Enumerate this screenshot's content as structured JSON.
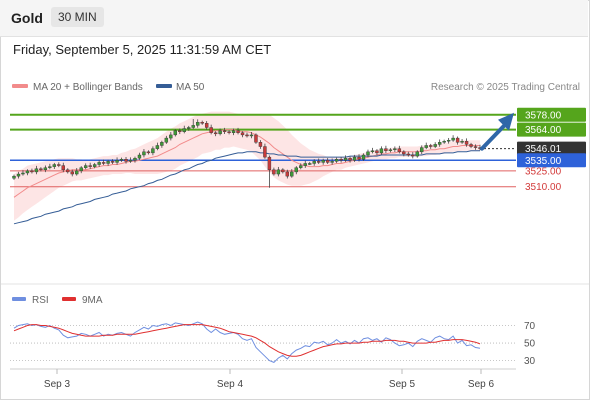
{
  "header": {
    "instrument": "Gold",
    "timeframe": "30 MIN"
  },
  "datetime": "Friday, September 5, 2025 11:31:59 AM CET",
  "legend": {
    "ma20": {
      "label": "MA 20 + Bollinger Bands",
      "color": "#f28b8b"
    },
    "ma50": {
      "label": "MA 50",
      "color": "#355d96"
    },
    "rsi": {
      "label": "RSI",
      "color": "#6f8fe0"
    },
    "ma9": {
      "label": "9MA",
      "color": "#e03030"
    }
  },
  "copyright": "Research © 2025 Trading Central",
  "chart_data": [
    {
      "type": "candlestick",
      "ylim": [
        3488,
        3592
      ],
      "x_ticks": [
        "Sep 3",
        "Sep 4",
        "Sep 5",
        "Sep 6"
      ],
      "levels": [
        {
          "value": 3578.0,
          "label": "3578.00",
          "kind": "target",
          "color": "#55a51c"
        },
        {
          "value": 3564.0,
          "label": "3564.00",
          "kind": "target",
          "color": "#55a51c"
        },
        {
          "value": 3546.01,
          "label": "3546.01",
          "kind": "last",
          "color": "#333333"
        },
        {
          "value": 3535.0,
          "label": "3535.00",
          "kind": "pivot",
          "color": "#2e62d9"
        },
        {
          "value": 3525.0,
          "label": "3525.00",
          "kind": "support",
          "color": "#e06060"
        },
        {
          "value": 3510.0,
          "label": "3510.00",
          "kind": "support",
          "color": "#e06060"
        }
      ],
      "close": [
        3520,
        3522,
        3523,
        3525,
        3524,
        3527,
        3526,
        3528,
        3529,
        3531,
        3530,
        3526,
        3524,
        3522,
        3525,
        3528,
        3530,
        3529,
        3531,
        3533,
        3532,
        3534,
        3533,
        3535,
        3536,
        3534,
        3535,
        3537,
        3540,
        3543,
        3542,
        3546,
        3549,
        3552,
        3556,
        3559,
        3563,
        3562,
        3565,
        3566,
        3568,
        3571,
        3570,
        3566,
        3561,
        3560,
        3563,
        3562,
        3561,
        3563,
        3561,
        3559,
        3558,
        3559,
        3552,
        3548,
        3538,
        3526,
        3522,
        3526,
        3524,
        3520,
        3524,
        3528,
        3530,
        3532,
        3532,
        3534,
        3533,
        3535,
        3533,
        3534,
        3536,
        3535,
        3537,
        3535,
        3538,
        3536,
        3540,
        3543,
        3544,
        3542,
        3546,
        3544,
        3545,
        3546,
        3543,
        3541,
        3540,
        3539,
        3543,
        3547,
        3549,
        3548,
        3550,
        3552,
        3553,
        3554,
        3556,
        3552,
        3553,
        3550,
        3548,
        3547,
        3546
      ],
      "ma20": [
        3500,
        3503,
        3506,
        3509,
        3511,
        3513,
        3515,
        3517,
        3519,
        3521,
        3523,
        3524,
        3525,
        3526,
        3526,
        3526,
        3526,
        3527,
        3528,
        3529,
        3530,
        3530,
        3531,
        3531,
        3532,
        3533,
        3534,
        3534,
        3535,
        3536,
        3537,
        3538,
        3539,
        3541,
        3543,
        3545,
        3547,
        3550,
        3552,
        3554,
        3556,
        3558,
        3560,
        3561,
        3562,
        3563,
        3563,
        3564,
        3564,
        3564,
        3563,
        3562,
        3562,
        3561,
        3559,
        3557,
        3554,
        3551,
        3547,
        3544,
        3541,
        3538,
        3535,
        3533,
        3531,
        3530,
        3529,
        3529,
        3529,
        3530,
        3530,
        3531,
        3532,
        3532,
        3533,
        3534,
        3535,
        3536,
        3537,
        3538,
        3539,
        3540,
        3541,
        3541,
        3542,
        3542,
        3543,
        3543,
        3543,
        3543,
        3543,
        3544,
        3544,
        3545,
        3545,
        3546,
        3546,
        3547,
        3548,
        3548,
        3549,
        3549,
        3549,
        3549,
        3549
      ],
      "ma50": [
        3475,
        3476,
        3477,
        3478,
        3480,
        3481,
        3482,
        3484,
        3485,
        3486,
        3487,
        3489,
        3490,
        3491,
        3493,
        3494,
        3495,
        3496,
        3498,
        3499,
        3500,
        3501,
        3503,
        3504,
        3505,
        3506,
        3508,
        3509,
        3510,
        3511,
        3513,
        3514,
        3516,
        3517,
        3519,
        3521,
        3522,
        3524,
        3526,
        3527,
        3529,
        3531,
        3532,
        3534,
        3535,
        3537,
        3538,
        3539,
        3540,
        3541,
        3542,
        3542,
        3543,
        3543,
        3543,
        3542,
        3542,
        3541,
        3541,
        3540,
        3540,
        3539,
        3539,
        3539,
        3538,
        3538,
        3538,
        3538,
        3538,
        3538,
        3538,
        3538,
        3538,
        3538,
        3538,
        3539,
        3539,
        3539,
        3539,
        3539,
        3539,
        3539,
        3540,
        3540,
        3540,
        3540,
        3540,
        3540,
        3540,
        3540,
        3540,
        3540,
        3541,
        3541,
        3541,
        3541,
        3542,
        3542,
        3542,
        3543,
        3543,
        3543,
        3544,
        3544,
        3544
      ],
      "band_width": [
        22,
        22,
        21,
        21,
        20,
        19,
        18,
        17,
        16,
        15,
        14,
        13,
        12,
        11,
        10,
        10,
        9,
        9,
        9,
        9,
        9,
        9,
        9,
        9,
        10,
        10,
        11,
        12,
        13,
        14,
        15,
        16,
        17,
        18,
        19,
        20,
        20,
        20,
        20,
        20,
        20,
        20,
        19,
        19,
        19,
        18,
        18,
        17,
        17,
        16,
        16,
        16,
        17,
        18,
        20,
        22,
        25,
        27,
        28,
        28,
        27,
        26,
        24,
        22,
        20,
        18,
        16,
        14,
        12,
        10,
        8,
        7,
        6,
        6,
        5,
        5,
        5,
        5,
        5,
        5,
        5,
        5,
        5,
        5,
        5,
        5,
        5,
        5,
        5,
        5,
        5,
        5,
        5,
        5,
        5,
        5,
        5,
        5,
        5,
        5,
        5,
        5,
        5,
        5,
        5
      ],
      "forecast": {
        "from": 3546.01,
        "to": 3578.0
      }
    },
    {
      "type": "line",
      "ylim": [
        25,
        82
      ],
      "y_ticks": [
        70,
        50,
        30
      ],
      "series": [
        {
          "name": "RSI",
          "values": [
            67,
            70,
            71,
            72,
            70,
            71,
            69,
            68,
            70,
            67,
            65,
            59,
            56,
            57,
            58,
            61,
            60,
            58,
            60,
            62,
            58,
            60,
            59,
            61,
            62,
            60,
            58,
            62,
            65,
            68,
            66,
            70,
            69,
            71,
            72,
            70,
            73,
            72,
            71,
            70,
            72,
            74,
            72,
            66,
            62,
            66,
            62,
            60,
            61,
            62,
            60,
            55,
            53,
            55,
            45,
            40,
            35,
            30,
            28,
            33,
            36,
            32,
            38,
            42,
            44,
            47,
            46,
            51,
            50,
            52,
            48,
            50,
            54,
            50,
            52,
            49,
            53,
            50,
            55,
            56,
            53,
            55,
            51,
            56,
            54,
            50,
            47,
            48,
            50,
            46,
            52,
            55,
            53,
            51,
            56,
            58,
            55,
            54,
            58,
            50,
            53,
            47,
            48,
            45,
            44
          ]
        },
        {
          "name": "9MA",
          "values": [
            64,
            66,
            68,
            70,
            71,
            71,
            70,
            70,
            69,
            68,
            67,
            65,
            63,
            61,
            60,
            59,
            58,
            58,
            58,
            58,
            59,
            59,
            59,
            60,
            60,
            60,
            60,
            60,
            61,
            62,
            63,
            64,
            65,
            66,
            67,
            68,
            69,
            70,
            71,
            71,
            71,
            71,
            71,
            70,
            69,
            68,
            67,
            65,
            63,
            62,
            61,
            60,
            59,
            58,
            56,
            53,
            50,
            46,
            43,
            40,
            38,
            36,
            35,
            35,
            36,
            38,
            40,
            42,
            44,
            46,
            47,
            48,
            49,
            49,
            50,
            50,
            50,
            50,
            51,
            51,
            52,
            52,
            52,
            53,
            53,
            53,
            52,
            52,
            51,
            50,
            50,
            50,
            50,
            51,
            51,
            52,
            53,
            53,
            54,
            54,
            54,
            53,
            52,
            51,
            49
          ]
        }
      ]
    }
  ]
}
